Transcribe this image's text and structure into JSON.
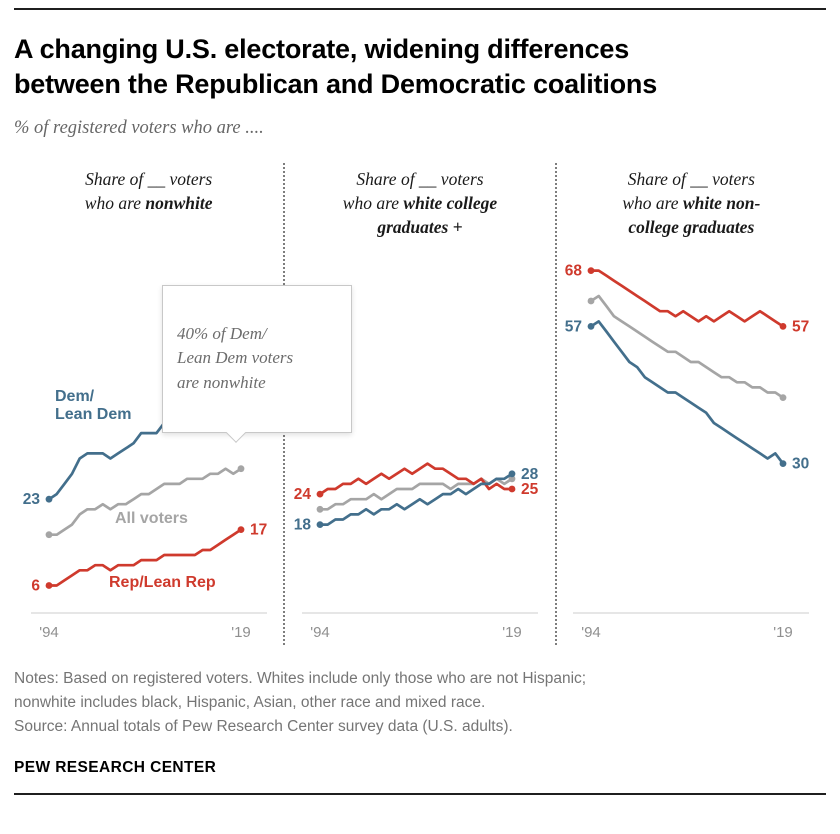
{
  "header": {
    "title": "A changing U.S. electorate, widening differences\nbetween the Republican and Democratic coalitions",
    "subtitle": "% of registered voters who are ...."
  },
  "callout": {
    "text": "40% of Dem/\nLean Dem voters\nare nonwhite"
  },
  "colors": {
    "dem": "#436f8c",
    "rep": "#cf3a2d",
    "all": "#a5a5a5",
    "axis_line": "#cccccc",
    "tick_text": "#8f8f8f"
  },
  "chart_data": [
    {
      "type": "line",
      "id": "nonwhite",
      "title_prefix": "Share of __ voters\nwho are ",
      "title_bold": "nonwhite",
      "xticks": [
        "'94",
        "'19"
      ],
      "x_range": [
        "1994",
        "2019"
      ],
      "series": [
        {
          "key": "all",
          "name": "All voters",
          "values": [
            16,
            16,
            17,
            18,
            20,
            21,
            21,
            22,
            21,
            22,
            22,
            23,
            24,
            24,
            25,
            26,
            26,
            26,
            27,
            27,
            27,
            28,
            28,
            29,
            28,
            29
          ]
        },
        {
          "key": "rep",
          "name": "Rep/Lean Rep",
          "start_label": "6",
          "end_label": "17",
          "values": [
            6,
            6,
            7,
            8,
            9,
            9,
            10,
            10,
            9,
            10,
            10,
            10,
            11,
            11,
            11,
            12,
            12,
            12,
            12,
            12,
            13,
            13,
            14,
            15,
            16,
            17
          ]
        },
        {
          "key": "dem",
          "name": "Dem/Lean Dem",
          "start_label": "23",
          "end_label": "40",
          "values": [
            23,
            24,
            26,
            28,
            31,
            32,
            32,
            32,
            31,
            32,
            33,
            34,
            36,
            36,
            36,
            38,
            37,
            39,
            40,
            39,
            41,
            40,
            41,
            40,
            39,
            40
          ]
        }
      ],
      "inline_labels": [
        {
          "key": "dem",
          "text": "Dem/\nLean Dem",
          "x": 36,
          "y": 150
        },
        {
          "key": "all",
          "text": "All voters",
          "x": 96,
          "y": 272
        },
        {
          "key": "rep",
          "text": "Rep/Lean Rep",
          "x": 90,
          "y": 336
        }
      ]
    },
    {
      "type": "line",
      "id": "white-college",
      "title_prefix": "Share of __ voters\nwho are ",
      "title_bold": "white college\ngraduates +",
      "xticks": [
        "'94",
        "'19"
      ],
      "x_range": [
        "1994",
        "2019"
      ],
      "series": [
        {
          "key": "all",
          "name": "All voters",
          "values": [
            21,
            21,
            22,
            22,
            23,
            23,
            23,
            24,
            23,
            24,
            25,
            25,
            25,
            26,
            26,
            26,
            26,
            25,
            26,
            26,
            26,
            27,
            26,
            27,
            26,
            27
          ]
        },
        {
          "key": "rep",
          "name": "Rep/Lean Rep",
          "start_label": "24",
          "end_label": "25",
          "values": [
            24,
            25,
            25,
            26,
            26,
            27,
            26,
            27,
            28,
            27,
            28,
            29,
            28,
            29,
            30,
            29,
            29,
            28,
            27,
            27,
            26,
            27,
            25,
            26,
            25,
            25
          ]
        },
        {
          "key": "dem",
          "name": "Dem/Lean Dem",
          "start_label": "18",
          "end_label": "28",
          "values": [
            18,
            18,
            19,
            19,
            20,
            20,
            21,
            20,
            21,
            21,
            22,
            21,
            22,
            23,
            22,
            23,
            24,
            24,
            25,
            24,
            25,
            26,
            26,
            27,
            27,
            28
          ]
        }
      ],
      "inline_labels": []
    },
    {
      "type": "line",
      "id": "white-noncollege",
      "title_prefix": "Share of __ voters\nwho are ",
      "title_bold": "white non-\ncollege graduates",
      "xticks": [
        "'94",
        "'19"
      ],
      "x_range": [
        "1994",
        "2019"
      ],
      "series": [
        {
          "key": "all",
          "name": "All voters",
          "values": [
            62,
            63,
            61,
            59,
            58,
            57,
            56,
            55,
            54,
            53,
            52,
            52,
            51,
            50,
            50,
            49,
            48,
            47,
            47,
            46,
            46,
            45,
            45,
            44,
            44,
            43
          ]
        },
        {
          "key": "rep",
          "name": "Rep/Lean Rep",
          "start_label": "68",
          "end_label": "57",
          "values": [
            68,
            68,
            67,
            66,
            65,
            64,
            63,
            62,
            61,
            60,
            60,
            59,
            60,
            59,
            58,
            59,
            58,
            59,
            60,
            59,
            58,
            59,
            60,
            59,
            58,
            57
          ]
        },
        {
          "key": "dem",
          "name": "Dem/Lean Dem",
          "start_label": "57",
          "end_label": "30",
          "values": [
            57,
            58,
            56,
            54,
            52,
            50,
            49,
            47,
            46,
            45,
            44,
            44,
            43,
            42,
            41,
            40,
            38,
            37,
            36,
            35,
            34,
            33,
            32,
            31,
            32,
            30
          ]
        }
      ],
      "inline_labels": []
    }
  ],
  "footer": {
    "notes": "Notes: Based on registered voters. Whites include only those who are not Hispanic;\nnonwhite includes black, Hispanic, Asian, other race and mixed race.",
    "source": "Source: Annual totals of Pew Research Center survey data (U.S. adults).",
    "brand": "PEW RESEARCH CENTER"
  }
}
